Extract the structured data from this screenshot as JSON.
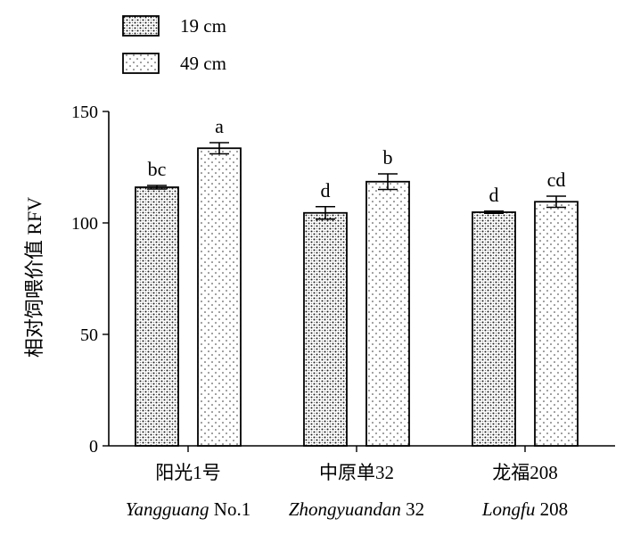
{
  "chart_data": {
    "type": "bar",
    "ylabel": "相对饲喂价值 RFV",
    "ylim": [
      0,
      150
    ],
    "yticks": [
      0,
      50,
      100,
      150
    ],
    "grid": false,
    "legend_position": "top-left",
    "categories": [
      {
        "name_cn": "阳光1号",
        "name_en_italic": "Yangguang",
        "name_en_rest": " No.1"
      },
      {
        "name_cn": "中原单32",
        "name_en_italic": "Zhongyuandan",
        "name_en_rest": " 32"
      },
      {
        "name_cn": "龙福208",
        "name_en_italic": "Longfu",
        "name_en_rest": " 208"
      }
    ],
    "series": [
      {
        "name": "19 cm",
        "values": [
          116,
          104.5,
          104.8
        ],
        "errors": [
          0.8,
          2.8,
          0.5
        ],
        "letters": [
          "bc",
          "d",
          "d"
        ],
        "pattern": "dense-dots"
      },
      {
        "name": "49 cm",
        "values": [
          133.5,
          118.5,
          109.5
        ],
        "errors": [
          2.5,
          3.5,
          2.5
        ],
        "letters": [
          "a",
          "b",
          "cd"
        ],
        "pattern": "sparse-dots"
      }
    ]
  }
}
